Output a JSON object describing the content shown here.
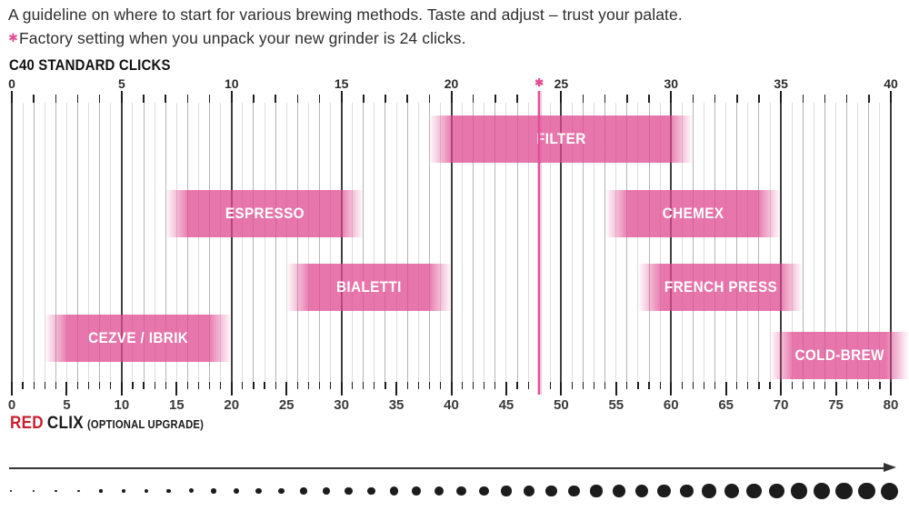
{
  "header": {
    "line1": "A guideline on where to start for various brewing methods. Taste and adjust – trust your palate.",
    "line2_marker": "✱",
    "line2": "Factory setting when you unpack your new grinder is 24 clicks.",
    "factory_marker_glyph": "✱"
  },
  "top_axis_title": "C40 STANDARD CLICKS",
  "bottom_axis_caption": {
    "word_red": "RED",
    "word_rest": "CLIX",
    "note": "(OPTIONAL UPGRADE)"
  },
  "chart_data": {
    "type": "bar",
    "subtype": "horizontal-range-gantt",
    "title": "C40 grind setting guideline per brewing method",
    "top_axis": {
      "label": "C40 STANDARD CLICKS",
      "min": 0,
      "max": 40,
      "label_step": 5,
      "tick_labels": [
        0,
        5,
        10,
        15,
        20,
        25,
        30,
        35,
        40
      ]
    },
    "bottom_axis": {
      "label": "RED CLIX (OPTIONAL UPGRADE)",
      "min": 0,
      "max": 80,
      "label_step": 5,
      "tick_labels": [
        0,
        5,
        10,
        15,
        20,
        25,
        30,
        35,
        40,
        45,
        50,
        55,
        60,
        65,
        70,
        75,
        80
      ]
    },
    "factory_setting_clicks": 24,
    "factory_setting_red_clix": 48,
    "series": [
      {
        "name": "FILTER",
        "row": 0,
        "start_clicks": 19,
        "end_clicks": 31,
        "start_red_clix": 38,
        "end_red_clix": 62
      },
      {
        "name": "ESPRESSO",
        "row": 1,
        "start_clicks": 7,
        "end_clicks": 16,
        "start_red_clix": 14,
        "end_red_clix": 32
      },
      {
        "name": "CHEMEX",
        "row": 1,
        "start_clicks": 27,
        "end_clicks": 35,
        "start_red_clix": 54,
        "end_red_clix": 70
      },
      {
        "name": "BIALETTI",
        "row": 2,
        "start_clicks": 12.5,
        "end_clicks": 20,
        "start_red_clix": 25,
        "end_red_clix": 40
      },
      {
        "name": "FRENCH PRESS",
        "row": 2,
        "start_clicks": 28.5,
        "end_clicks": 36,
        "start_red_clix": 57,
        "end_red_clix": 72
      },
      {
        "name": "CEZVE / IBRIK",
        "row": 3,
        "start_clicks": 1.5,
        "end_clicks": 10,
        "start_red_clix": 3,
        "end_red_clix": 20
      },
      {
        "name": "COLD-BREW",
        "row": 4,
        "start_clicks": 34.5,
        "end_clicks": 41,
        "start_red_clix": 69,
        "end_red_clix": 82
      }
    ],
    "grid": {
      "minor_every_red_clix": 1,
      "click_line_every_red_clix": 2,
      "major_every_red_clix": 10
    },
    "legend_position": "none",
    "grind_size_scale": {
      "meaning": "particle size grows coarser to the right",
      "dot_count": 40,
      "direction": "left-to-right arrow"
    }
  },
  "colors": {
    "bar_pink": "#df4890",
    "factory_pink": "#e0509b",
    "red_word": "#c8202f",
    "text_dark": "#2e2e2e",
    "grid_major": "#3f3f3f",
    "grid_click": "#b5b5b5",
    "grid_half": "#dcdcdc",
    "dot_black": "#1c1c1c"
  }
}
